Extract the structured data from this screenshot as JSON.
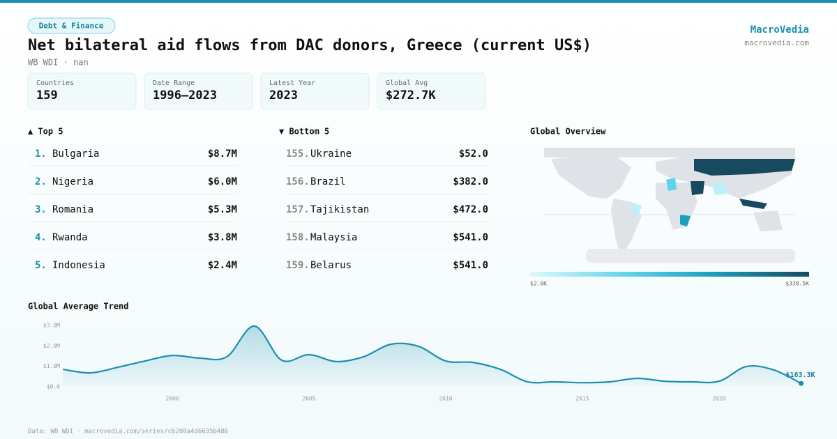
{
  "header": {
    "tag": "Debt & Finance",
    "title": "Net bilateral aid flows from DAC donors, Greece (current US$)",
    "subtitle": "WB WDI · nan",
    "brand": "MacroVedia",
    "site": "macrovedia.com"
  },
  "stats": [
    {
      "label": "Countries",
      "value": "159"
    },
    {
      "label": "Date Range",
      "value": "1996–2023"
    },
    {
      "label": "Latest Year",
      "value": "2023"
    },
    {
      "label": "Global Avg",
      "value": "$272.7K"
    }
  ],
  "top": {
    "title": "▲ Top 5",
    "rows": [
      {
        "rank": "1.",
        "name": "Bulgaria",
        "value": "$8.7M"
      },
      {
        "rank": "2.",
        "name": "Nigeria",
        "value": "$6.0M"
      },
      {
        "rank": "3.",
        "name": "Romania",
        "value": "$5.3M"
      },
      {
        "rank": "4.",
        "name": "Rwanda",
        "value": "$3.8M"
      },
      {
        "rank": "5.",
        "name": "Indonesia",
        "value": "$2.4M"
      }
    ]
  },
  "bottom": {
    "title": "▼ Bottom 5",
    "rows": [
      {
        "rank": "155.",
        "name": "Ukraine",
        "value": "$52.0"
      },
      {
        "rank": "156.",
        "name": "Brazil",
        "value": "$382.0"
      },
      {
        "rank": "157.",
        "name": "Tajikistan",
        "value": "$472.0"
      },
      {
        "rank": "158.",
        "name": "Malaysia",
        "value": "$541.0"
      },
      {
        "rank": "159.",
        "name": "Belarus",
        "value": "$541.0"
      }
    ]
  },
  "map": {
    "title": "Global Overview",
    "legend_min": "$2.0K",
    "legend_max": "$338.5K"
  },
  "chart_data": {
    "type": "line",
    "title": "Global Average Trend",
    "x": [
      1996,
      1997,
      1998,
      1999,
      2000,
      2001,
      2002,
      2003,
      2004,
      2005,
      2006,
      2007,
      2008,
      2009,
      2010,
      2011,
      2012,
      2013,
      2014,
      2015,
      2016,
      2017,
      2018,
      2019,
      2020,
      2021,
      2022,
      2023
    ],
    "values": [
      850000,
      680000,
      950000,
      1260000,
      1530000,
      1400000,
      1470000,
      2970000,
      1300000,
      1570000,
      1230000,
      1470000,
      2080000,
      1980000,
      1260000,
      1190000,
      850000,
      240000,
      240000,
      200000,
      240000,
      410000,
      270000,
      240000,
      270000,
      990000,
      820000,
      163300
    ],
    "last_label": "$163.3K",
    "color": "#1a8fb0",
    "xlim": [
      1996,
      2023
    ],
    "ylim": [
      -200000,
      3300000
    ],
    "xticks": [
      2000,
      2005,
      2010,
      2015,
      2020
    ],
    "yticks": [
      {
        "value": 0,
        "label": "$0.0"
      },
      {
        "value": 1000000,
        "label": "$1.0M"
      },
      {
        "value": 2000000,
        "label": "$2.0M"
      },
      {
        "value": 3000000,
        "label": "$3.0M"
      }
    ]
  },
  "footer": "Data: WB WDI · macrovedia.com/series/c6208a4d6635b486"
}
